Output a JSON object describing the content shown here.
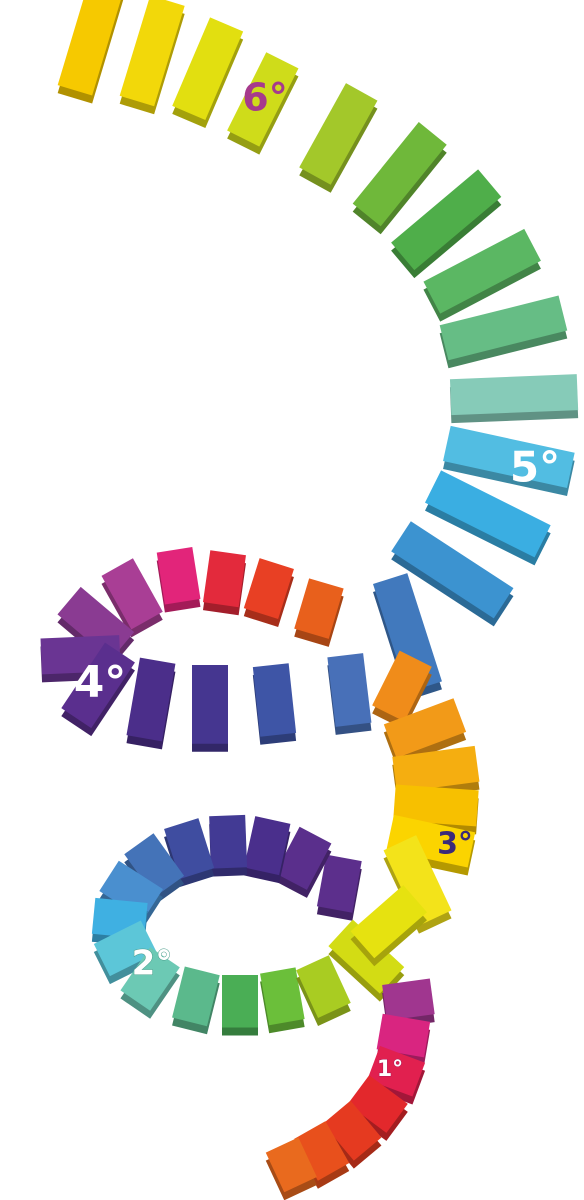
{
  "labels": [
    "1°",
    "2°",
    "3°",
    "4°",
    "5°",
    "6°"
  ]
}
